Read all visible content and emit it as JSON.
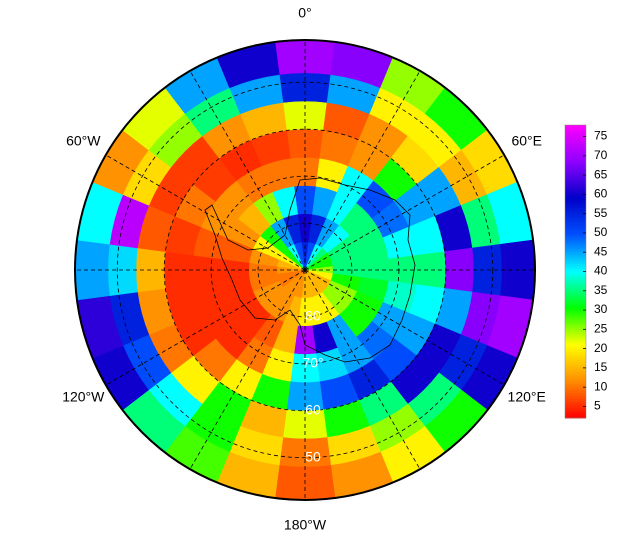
{
  "chart_data": {
    "type": "polar_heatmap",
    "lat_edges": [
      -90,
      -84,
      -78,
      -72,
      -66,
      -60,
      -54,
      -48,
      -41
    ],
    "lon_edges": [
      -7.5,
      7.5,
      22.5,
      37.5,
      52.5,
      67.5,
      82.5,
      97.5,
      112.5,
      127.5,
      142.5,
      157.5,
      172.5,
      187.5,
      202.5,
      217.5,
      232.5,
      247.5,
      262.5,
      277.5,
      292.5,
      307.5,
      322.5,
      337.5,
      352.5
    ],
    "values": [
      [
        55,
        50,
        40,
        35,
        30,
        30,
        25,
        20,
        15,
        15,
        15,
        15,
        15,
        12,
        12,
        12,
        10,
        10,
        12,
        15,
        20,
        30,
        40,
        50
      ],
      [
        60,
        55,
        45,
        40,
        35,
        35,
        35,
        30,
        25,
        25,
        20,
        20,
        20,
        15,
        12,
        12,
        12,
        10,
        10,
        12,
        20,
        30,
        45,
        55
      ],
      [
        50,
        45,
        40,
        35,
        35,
        35,
        35,
        32,
        30,
        30,
        45,
        60,
        70,
        15,
        8,
        5,
        5,
        5,
        5,
        8,
        12,
        15,
        25,
        40
      ],
      [
        10,
        20,
        40,
        50,
        48,
        40,
        35,
        38,
        45,
        48,
        45,
        42,
        40,
        20,
        10,
        5,
        5,
        5,
        5,
        8,
        12,
        12,
        10,
        10
      ],
      [
        8,
        10,
        12,
        30,
        45,
        40,
        35,
        40,
        45,
        50,
        55,
        50,
        45,
        30,
        20,
        10,
        5,
        5,
        5,
        6,
        10,
        6,
        5,
        6
      ],
      [
        22,
        8,
        12,
        18,
        45,
        60,
        68,
        45,
        60,
        60,
        35,
        30,
        22,
        15,
        30,
        20,
        10,
        12,
        15,
        8,
        6,
        6,
        12,
        15
      ],
      [
        55,
        45,
        20,
        20,
        15,
        35,
        55,
        68,
        55,
        35,
        25,
        18,
        10,
        18,
        30,
        40,
        50,
        55,
        42,
        72,
        18,
        25,
        35,
        45
      ],
      [
        70,
        68,
        25,
        30,
        18,
        40,
        60,
        70,
        60,
        30,
        20,
        12,
        8,
        15,
        28,
        35,
        60,
        62,
        45,
        40,
        12,
        22,
        45,
        60
      ]
    ],
    "colormap": [
      "#ff0000",
      "#ff8c00",
      "#ffff00",
      "#00ff00",
      "#00ffff",
      "#0050ff",
      "#0000c8",
      "#9000ff",
      "#ff00ff"
    ],
    "clim": [
      2,
      78
    ],
    "cticks": [
      5,
      10,
      15,
      20,
      25,
      30,
      35,
      40,
      45,
      50,
      55,
      60,
      65,
      70,
      75
    ],
    "lon_lines": [
      0,
      30,
      60,
      90,
      120,
      150,
      180,
      210,
      240,
      270,
      300,
      330
    ],
    "lon_labels": [
      {
        "value": 0,
        "label": "0°"
      },
      {
        "value": 60,
        "label": "60°E"
      },
      {
        "value": 120,
        "label": "120°E"
      },
      {
        "value": 180,
        "label": "180°W"
      },
      {
        "value": 240,
        "label": "120°W"
      },
      {
        "value": 300,
        "label": "60°W"
      }
    ],
    "lat_ticks": [
      {
        "value": -80,
        "label": "80"
      },
      {
        "value": -70,
        "label": "70°"
      },
      {
        "value": -60,
        "label": "60"
      },
      {
        "value": -50,
        "label": "50"
      }
    ]
  }
}
